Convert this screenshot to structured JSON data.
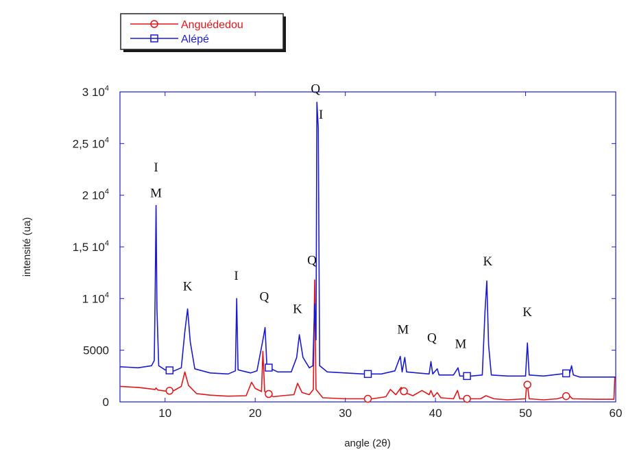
{
  "chart_data": {
    "type": "line",
    "xlabel": "angle (2θ)",
    "ylabel": "intensité (ua)",
    "xlim": [
      5,
      60
    ],
    "ylim": [
      0,
      30000
    ],
    "x_ticks": [
      {
        "value": 10,
        "label": "10"
      },
      {
        "value": 20,
        "label": "20"
      },
      {
        "value": 30,
        "label": "30"
      },
      {
        "value": 40,
        "label": "40"
      },
      {
        "value": 50,
        "label": "50"
      },
      {
        "value": 60,
        "label": "60"
      }
    ],
    "y_ticks": [
      {
        "value": 0,
        "label": "0"
      },
      {
        "value": 5000,
        "label": "5000"
      },
      {
        "value": 10000,
        "label": "1 10",
        "exp": "4"
      },
      {
        "value": 15000,
        "label": "1,5 10",
        "exp": "4"
      },
      {
        "value": 20000,
        "label": "2 10",
        "exp": "4"
      },
      {
        "value": 25000,
        "label": "2,5 10",
        "exp": "4"
      },
      {
        "value": 30000,
        "label": "3 10",
        "exp": "4"
      }
    ],
    "series": [
      {
        "name": "Anguédedou",
        "color": "#e0161b",
        "marker": "circle",
        "marker_x": [
          10.5,
          21.5,
          32.5,
          36.5,
          43.5,
          50.2,
          54.5
        ],
        "points": [
          [
            5,
            1500
          ],
          [
            6,
            1450
          ],
          [
            7,
            1400
          ],
          [
            8,
            1300
          ],
          [
            8.9,
            1200
          ],
          [
            9,
            1350
          ],
          [
            9.2,
            1150
          ],
          [
            10,
            1050
          ],
          [
            11,
            1100
          ],
          [
            11.8,
            1500
          ],
          [
            12.2,
            2900
          ],
          [
            12.6,
            1600
          ],
          [
            13.5,
            800
          ],
          [
            15,
            650
          ],
          [
            17,
            550
          ],
          [
            19,
            600
          ],
          [
            19.6,
            1900
          ],
          [
            20,
            1300
          ],
          [
            20.7,
            1000
          ],
          [
            20.85,
            4900
          ],
          [
            21.05,
            1000
          ],
          [
            22,
            500
          ],
          [
            23,
            600
          ],
          [
            24.3,
            700
          ],
          [
            24.7,
            1800
          ],
          [
            25.2,
            900
          ],
          [
            26,
            700
          ],
          [
            26.45,
            1200
          ],
          [
            26.6,
            11800
          ],
          [
            26.75,
            1200
          ],
          [
            27.5,
            400
          ],
          [
            30,
            300
          ],
          [
            33,
            300
          ],
          [
            34.5,
            500
          ],
          [
            35,
            1200
          ],
          [
            35.6,
            700
          ],
          [
            36.2,
            1400
          ],
          [
            36.6,
            900
          ],
          [
            37.5,
            600
          ],
          [
            38.5,
            1100
          ],
          [
            39.3,
            700
          ],
          [
            39.5,
            1100
          ],
          [
            39.8,
            500
          ],
          [
            40.2,
            900
          ],
          [
            40.6,
            400
          ],
          [
            42,
            300
          ],
          [
            42.45,
            1100
          ],
          [
            42.7,
            300
          ],
          [
            45,
            300
          ],
          [
            45.6,
            600
          ],
          [
            46.5,
            300
          ],
          [
            48,
            200
          ],
          [
            50,
            300
          ],
          [
            50.15,
            2000
          ],
          [
            50.4,
            300
          ],
          [
            52,
            200
          ],
          [
            53.5,
            300
          ],
          [
            54.3,
            500
          ],
          [
            54.8,
            650
          ],
          [
            55.2,
            300
          ],
          [
            58,
            250
          ],
          [
            59.8,
            250
          ],
          [
            59.9,
            2400
          ],
          [
            60,
            2400
          ]
        ]
      },
      {
        "name": "Alépé",
        "color": "#1a1acc",
        "marker": "square",
        "marker_x": [
          10.5,
          21.5,
          32.5,
          43.5,
          54.5
        ],
        "points": [
          [
            5,
            3400
          ],
          [
            6,
            3350
          ],
          [
            7,
            3300
          ],
          [
            8.5,
            3500
          ],
          [
            8.8,
            4000
          ],
          [
            8.9,
            10500
          ],
          [
            9.0,
            19000
          ],
          [
            9.1,
            9000
          ],
          [
            9.3,
            3500
          ],
          [
            10,
            3100
          ],
          [
            11,
            3000
          ],
          [
            11.8,
            3300
          ],
          [
            12.2,
            6800
          ],
          [
            12.5,
            9000
          ],
          [
            12.8,
            5800
          ],
          [
            13.3,
            3200
          ],
          [
            15,
            2800
          ],
          [
            17,
            2700
          ],
          [
            17.8,
            3000
          ],
          [
            17.95,
            10000
          ],
          [
            18.1,
            3100
          ],
          [
            19.5,
            2800
          ],
          [
            20.2,
            3000
          ],
          [
            20.9,
            6200
          ],
          [
            21.1,
            7200
          ],
          [
            21.3,
            3400
          ],
          [
            22.5,
            2900
          ],
          [
            24,
            2900
          ],
          [
            24.6,
            4300
          ],
          [
            24.9,
            6500
          ],
          [
            25.3,
            4300
          ],
          [
            26,
            3300
          ],
          [
            26.4,
            3500
          ],
          [
            26.6,
            9500
          ],
          [
            26.75,
            6000
          ],
          [
            26.85,
            29000
          ],
          [
            27.0,
            26500
          ],
          [
            27.15,
            3500
          ],
          [
            28,
            2900
          ],
          [
            30,
            2800
          ],
          [
            32,
            2700
          ],
          [
            34,
            2700
          ],
          [
            35.5,
            3000
          ],
          [
            36.1,
            4400
          ],
          [
            36.3,
            2900
          ],
          [
            36.6,
            4300
          ],
          [
            36.8,
            2900
          ],
          [
            38,
            2800
          ],
          [
            39.3,
            2700
          ],
          [
            39.5,
            3900
          ],
          [
            39.7,
            2700
          ],
          [
            40.2,
            3200
          ],
          [
            40.4,
            2600
          ],
          [
            42,
            2600
          ],
          [
            42.5,
            3300
          ],
          [
            42.7,
            2500
          ],
          [
            44,
            2500
          ],
          [
            45.2,
            2600
          ],
          [
            45.5,
            8800
          ],
          [
            45.7,
            11700
          ],
          [
            45.9,
            5500
          ],
          [
            46.2,
            2600
          ],
          [
            48,
            2500
          ],
          [
            50,
            2500
          ],
          [
            50.2,
            5700
          ],
          [
            50.4,
            2600
          ],
          [
            52,
            2500
          ],
          [
            54.9,
            2800
          ],
          [
            55.1,
            3500
          ],
          [
            55.3,
            2600
          ],
          [
            56,
            2400
          ],
          [
            58,
            2400
          ],
          [
            60,
            2400
          ]
        ]
      }
    ],
    "annotations": [
      {
        "text": "I",
        "x": 9.0,
        "y": 22300
      },
      {
        "text": "M",
        "x": 9.0,
        "y": 19800
      },
      {
        "text": "K",
        "x": 12.5,
        "y": 10800
      },
      {
        "text": "I",
        "x": 17.9,
        "y": 11800
      },
      {
        "text": "Q",
        "x": 21.0,
        "y": 9800
      },
      {
        "text": "K",
        "x": 24.7,
        "y": 8600
      },
      {
        "text": "Q",
        "x": 26.3,
        "y": 13300
      },
      {
        "text": "Q",
        "x": 26.7,
        "y": 29900
      },
      {
        "text": "I",
        "x": 27.3,
        "y": 27400
      },
      {
        "text": "M",
        "x": 36.4,
        "y": 6600
      },
      {
        "text": "Q",
        "x": 39.6,
        "y": 5800
      },
      {
        "text": "M",
        "x": 42.8,
        "y": 5200
      },
      {
        "text": "K",
        "x": 45.8,
        "y": 13200
      },
      {
        "text": "K",
        "x": 50.2,
        "y": 8300
      }
    ]
  }
}
